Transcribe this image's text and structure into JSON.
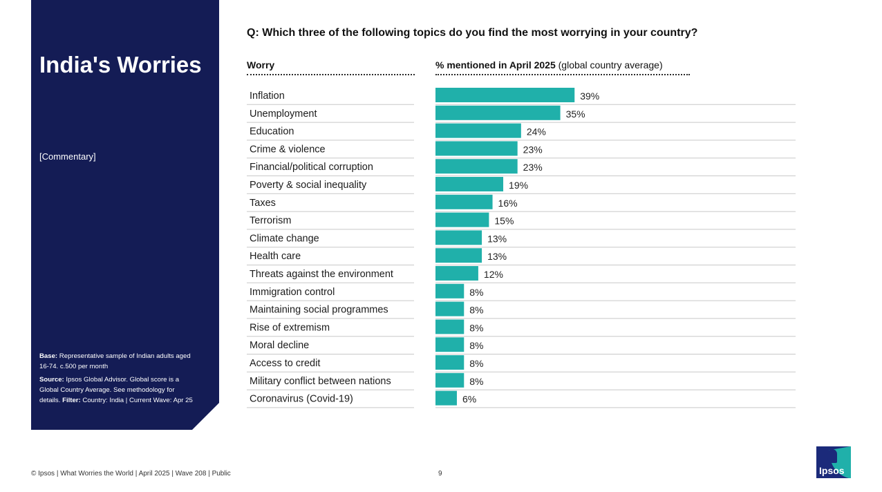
{
  "sidebar": {
    "title": "India's Worries",
    "commentary": "[Commentary]",
    "base_label": "Base:",
    "base_text": " Representative sample of Indian adults aged 16-74. c.500 per month",
    "source_label": "Source:",
    "source_text": " Ipsos Global Advisor. Global score is a Global Country Average. See methodology for details. ",
    "filter_label": "Filter:",
    "filter_text": " Country: India | Current Wave: Apr 25"
  },
  "question": "Q: Which three of the following topics do you find the most worrying in your country?",
  "header": {
    "worry": "Worry",
    "pct_bold": "% mentioned in April 2025",
    "pct_rest": " (global country average)"
  },
  "footer": {
    "text": "© Ipsos | What Worries the World | April 2025 | Wave 208 | Public",
    "page": "9"
  },
  "logo_text": "Ipsos",
  "colors": {
    "bar": "#20b0aa",
    "panel": "#141c55",
    "logo": "#1b2a7a"
  },
  "chart_data": {
    "type": "bar",
    "orientation": "horizontal",
    "title": "% mentioned in April 2025 (global country average)",
    "xlabel": "",
    "ylabel": "Worry",
    "xlim": [
      0,
      100
    ],
    "categories": [
      "Inflation",
      "Unemployment",
      "Education",
      "Crime & violence",
      "Financial/political corruption",
      "Poverty & social inequality",
      "Taxes",
      "Terrorism",
      "Climate change",
      "Health care",
      "Threats against the environment",
      "Immigration control",
      "Maintaining social programmes",
      "Rise of extremism",
      "Moral decline",
      "Access to credit",
      "Military conflict between nations",
      "Coronavirus (Covid-19)"
    ],
    "values": [
      39,
      35,
      24,
      23,
      23,
      19,
      16,
      15,
      13,
      13,
      12,
      8,
      8,
      8,
      8,
      8,
      8,
      6
    ],
    "labels": [
      "39%",
      "35%",
      "24%",
      "23%",
      "23%",
      "19%",
      "16%",
      "15%",
      "13%",
      "13%",
      "12%",
      "8%",
      "8%",
      "8%",
      "8%",
      "8%",
      "8%",
      "6%"
    ]
  }
}
